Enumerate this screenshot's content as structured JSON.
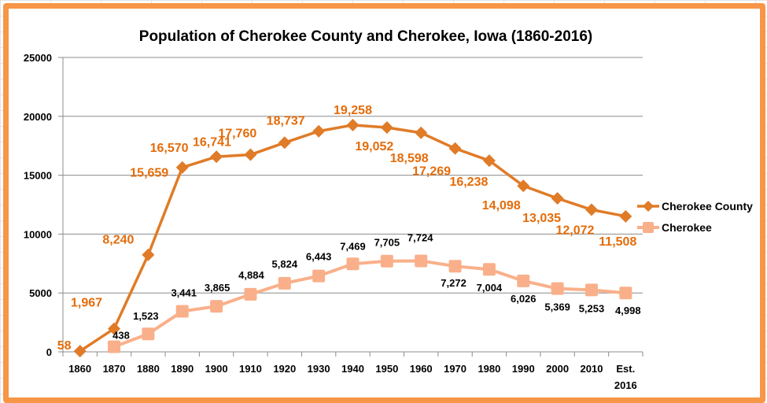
{
  "chart_data": {
    "type": "line",
    "title": "Population of Cherokee County and Cherokee, Iowa (1860-2016)",
    "categories": [
      "1860",
      "1870",
      "1880",
      "1890",
      "1900",
      "1910",
      "1920",
      "1930",
      "1940",
      "1950",
      "1960",
      "1970",
      "1980",
      "1990",
      "2000",
      "2010",
      "Est. 2016"
    ],
    "ylim": [
      0,
      25000
    ],
    "yticks": [
      0,
      5000,
      10000,
      15000,
      20000,
      25000
    ],
    "grid": true,
    "legend_position": "right",
    "series": [
      {
        "name": "Cherokee County",
        "color": "#e07b28",
        "marker": "diamond",
        "values": [
          58,
          1967,
          8240,
          15659,
          16570,
          16741,
          17760,
          18737,
          19258,
          19052,
          18598,
          17269,
          16238,
          14098,
          13035,
          12072,
          11508
        ],
        "labels": [
          "58",
          "1,967",
          "8,240",
          "15,659",
          "16,570",
          "16,741",
          "17,760",
          "18,737",
          "19,258",
          "19,052",
          "18,598",
          "17,269",
          "16,238",
          "14,098",
          "13,035",
          "12,072",
          "11,508"
        ]
      },
      {
        "name": "Cherokee",
        "color": "#f9b08a",
        "marker": "square",
        "values": [
          null,
          438,
          1523,
          3441,
          3865,
          4884,
          5824,
          6443,
          7469,
          7705,
          7724,
          7272,
          7004,
          6026,
          5369,
          5253,
          4998
        ],
        "labels": [
          "",
          "438",
          "1,523",
          "3,441",
          "3,865",
          "4,884",
          "5,824",
          "6,443",
          "7,469",
          "7,705",
          "7,724",
          "7,272",
          "7,004",
          "6,026",
          "5,369",
          "5,253",
          "4,998"
        ]
      }
    ]
  }
}
